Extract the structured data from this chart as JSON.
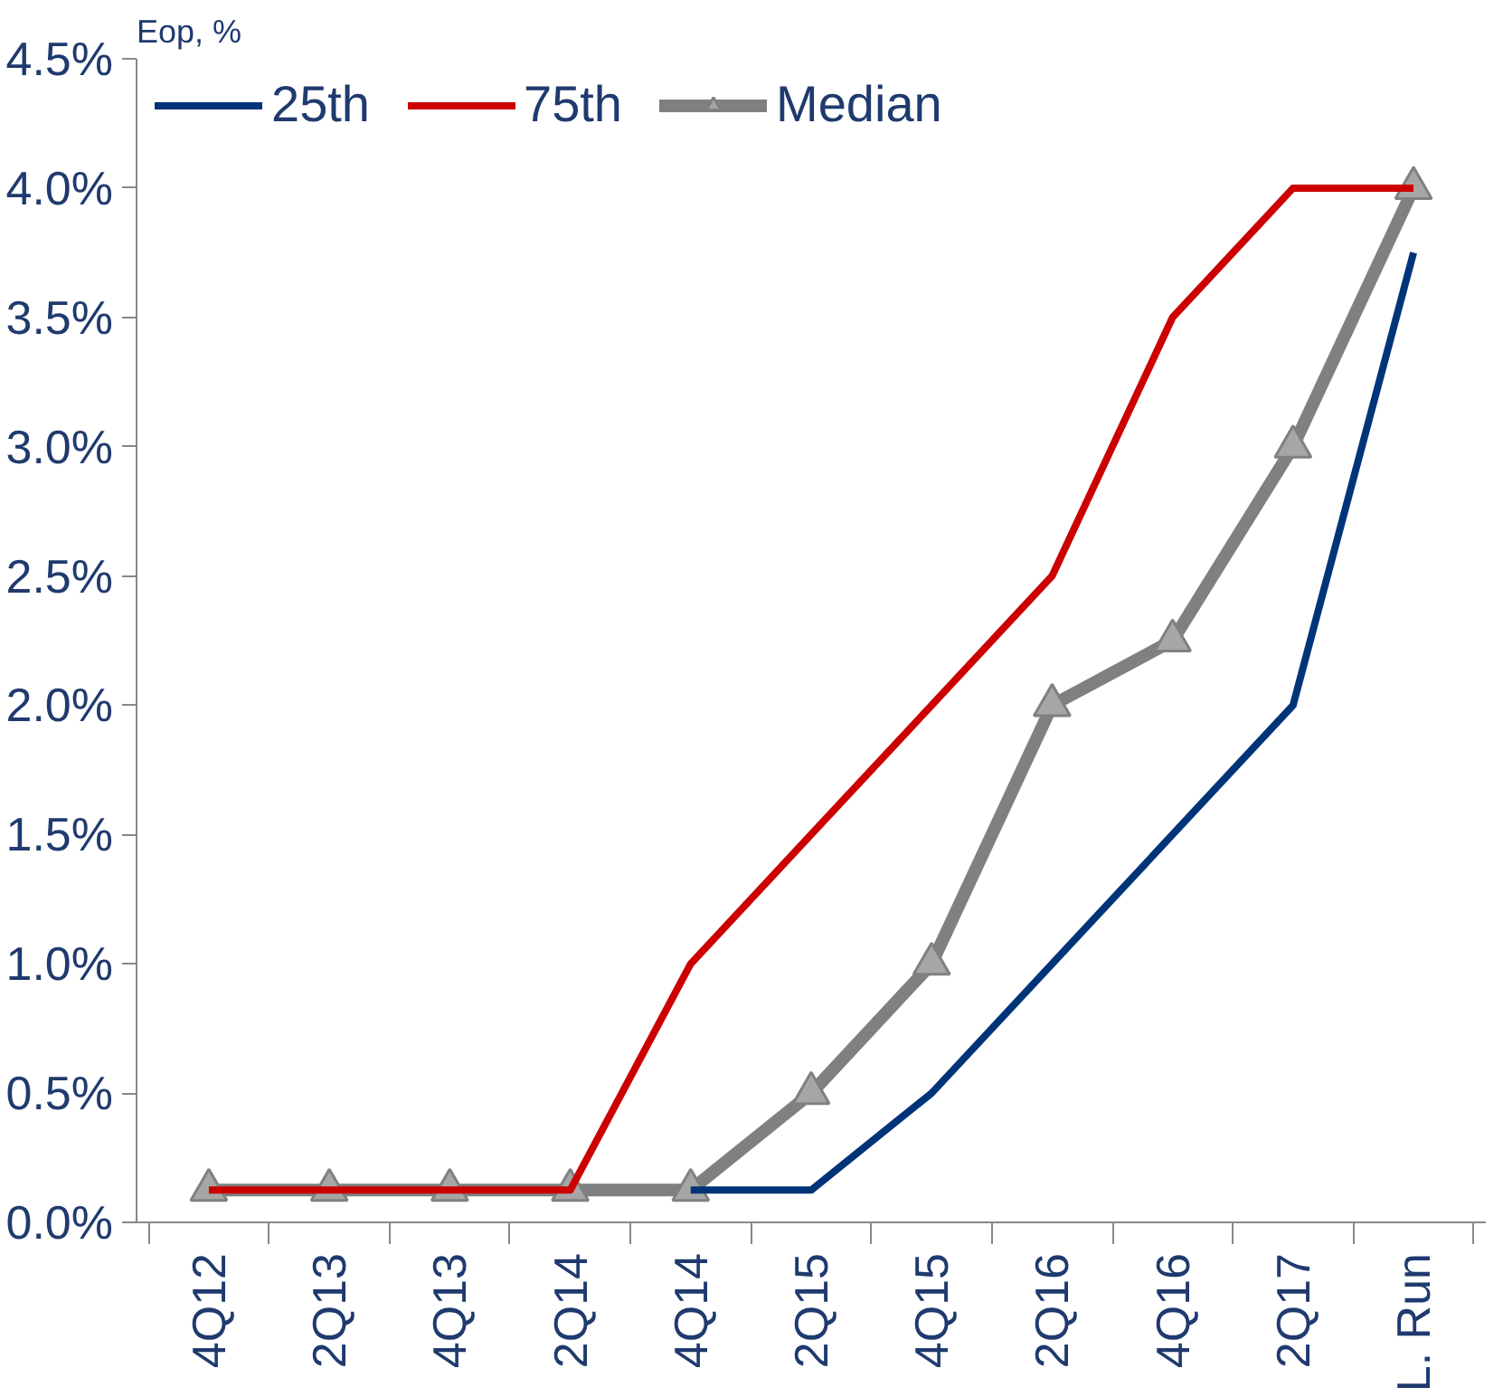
{
  "chart_data": {
    "type": "line",
    "ylabel": "Eop, %",
    "categories": [
      "4Q12",
      "2Q13",
      "4Q13",
      "2Q14",
      "4Q14",
      "2Q15",
      "4Q15",
      "2Q16",
      "4Q16",
      "2Q17",
      "L. Run"
    ],
    "series": [
      {
        "name": "25th",
        "color": "#003478",
        "marker": "none",
        "values": [
          null,
          null,
          null,
          null,
          0.125,
          0.125,
          0.5,
          1.0,
          1.5,
          2.0,
          3.75
        ]
      },
      {
        "name": "75th",
        "color": "#cc0000",
        "marker": "none",
        "values": [
          0.125,
          0.125,
          0.125,
          0.125,
          1.0,
          1.5,
          2.0,
          2.5,
          3.5,
          4.0,
          4.0
        ]
      },
      {
        "name": "Median",
        "color": "#808080",
        "marker": "triangle",
        "values": [
          0.125,
          0.125,
          0.125,
          0.125,
          0.125,
          0.5,
          1.0,
          2.0,
          2.25,
          3.0,
          4.0
        ]
      }
    ],
    "ylim": [
      0,
      4.5
    ],
    "yticks": [
      {
        "value": 0,
        "label": "0.0%"
      },
      {
        "value": 0.5,
        "label": "0.5%"
      },
      {
        "value": 1,
        "label": "1.0%"
      },
      {
        "value": 1.5,
        "label": "1.5%"
      },
      {
        "value": 2,
        "label": "2.0%"
      },
      {
        "value": 2.5,
        "label": "2.5%"
      },
      {
        "value": 3,
        "label": "3.0%"
      },
      {
        "value": 3.5,
        "label": "3.5%"
      },
      {
        "value": 4,
        "label": "4.0%"
      },
      {
        "value": 4.5,
        "label": "4.5%"
      }
    ],
    "grid": false,
    "legend": "top left",
    "line_style": "solid"
  }
}
